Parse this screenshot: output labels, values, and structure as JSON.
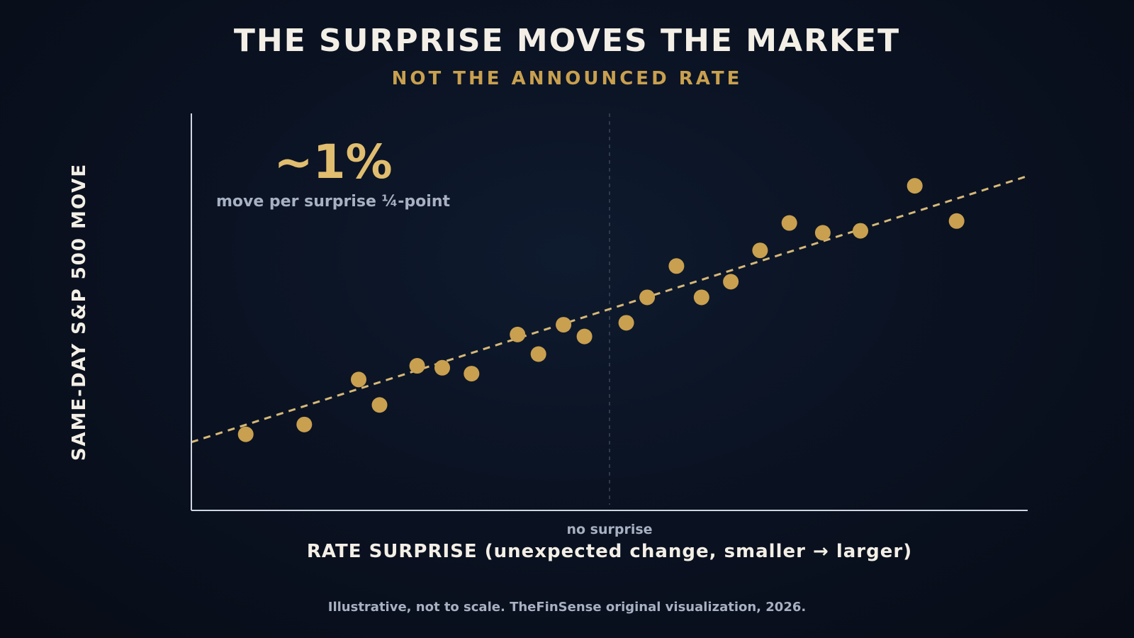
{
  "colors": {
    "background": "#0a1120",
    "title": "#f3efe6",
    "accent": "#c9a04f",
    "points": "#c9a04f",
    "trend": "#d6b878",
    "muted": "#a7b1c2",
    "axis": "#cfd6e2"
  },
  "header": {
    "title": "THE SURPRISE MOVES THE MARKET",
    "subtitle": "NOT THE ANNOUNCED RATE"
  },
  "annotation": {
    "value": "~1%",
    "caption": "move per surprise ¼-point"
  },
  "footer": {
    "note": "Illustrative, not to scale. TheFinSense original visualization, 2026."
  },
  "chart_data": {
    "type": "scatter",
    "title": "THE SURPRISE MOVES THE MARKET",
    "subtitle": "NOT THE ANNOUNCED RATE",
    "xlabel": "RATE SURPRISE (unexpected change, smaller → larger)",
    "ylabel": "SAME-DAY S&P 500 MOVE",
    "x_reference": {
      "x": 0,
      "label": "no surprise"
    },
    "xlim": [
      -1,
      1
    ],
    "ylim": [
      -1,
      1
    ],
    "grid": false,
    "legend": "none",
    "scale_note": "Illustrative, not to scale",
    "points": [
      {
        "x": -0.87,
        "y": -0.64
      },
      {
        "x": -0.73,
        "y": -0.59
      },
      {
        "x": -0.6,
        "y": -0.36
      },
      {
        "x": -0.55,
        "y": -0.49
      },
      {
        "x": -0.46,
        "y": -0.29
      },
      {
        "x": -0.4,
        "y": -0.3
      },
      {
        "x": -0.33,
        "y": -0.33
      },
      {
        "x": -0.22,
        "y": -0.13
      },
      {
        "x": -0.17,
        "y": -0.23
      },
      {
        "x": -0.11,
        "y": -0.08
      },
      {
        "x": -0.06,
        "y": -0.14
      },
      {
        "x": 0.04,
        "y": -0.07
      },
      {
        "x": 0.09,
        "y": 0.06
      },
      {
        "x": 0.16,
        "y": 0.22
      },
      {
        "x": 0.22,
        "y": 0.06
      },
      {
        "x": 0.29,
        "y": 0.14
      },
      {
        "x": 0.36,
        "y": 0.3
      },
      {
        "x": 0.43,
        "y": 0.44
      },
      {
        "x": 0.51,
        "y": 0.39
      },
      {
        "x": 0.6,
        "y": 0.4
      },
      {
        "x": 0.73,
        "y": 0.63
      },
      {
        "x": 0.83,
        "y": 0.45
      }
    ],
    "trend_line": {
      "style": "dashed",
      "y_at_xmin": -0.68,
      "y_at_xmax": 0.68
    }
  }
}
